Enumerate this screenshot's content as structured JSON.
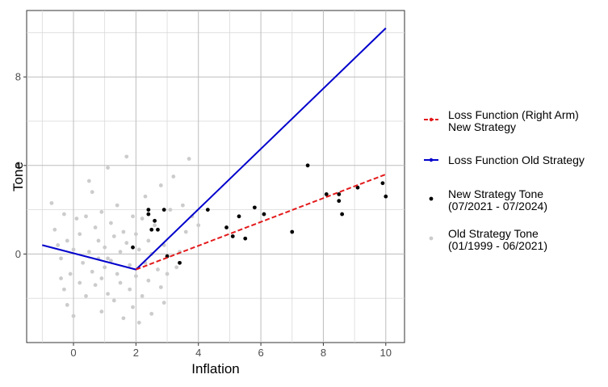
{
  "chart_data": {
    "type": "scatter",
    "xlabel": "Inflation",
    "ylabel": "Tone",
    "xlim": [
      -1.5,
      10.6
    ],
    "ylim": [
      -4,
      11
    ],
    "xticks": [
      0,
      2,
      4,
      6,
      8,
      10
    ],
    "yticks": [
      0,
      4,
      8
    ],
    "grid": true,
    "legend_position": "right",
    "series": [
      {
        "kind": "line-dashed",
        "color": "#e31a1c",
        "legend_lines": [
          "Loss Function (Right Arm)",
          "New Strategy"
        ],
        "points": [
          [
            2,
            -0.7
          ],
          [
            10,
            3.6
          ]
        ]
      },
      {
        "kind": "line",
        "color": "#0000cc",
        "legend_lines": [
          "Loss Function Old Strategy"
        ],
        "points": [
          [
            -1,
            0.4
          ],
          [
            2,
            -0.7
          ],
          [
            10,
            10.2
          ]
        ]
      },
      {
        "kind": "points",
        "color": "#000000",
        "legend_lines": [
          "New Strategy Tone",
          "(07/2021 - 07/2024)"
        ],
        "points": [
          [
            1.9,
            0.3
          ],
          [
            2.4,
            1.8
          ],
          [
            2.4,
            2.0
          ],
          [
            2.5,
            1.1
          ],
          [
            2.6,
            1.5
          ],
          [
            2.7,
            1.1
          ],
          [
            2.9,
            2.0
          ],
          [
            3.0,
            -0.1
          ],
          [
            3.4,
            -0.4
          ],
          [
            4.3,
            2.0
          ],
          [
            4.9,
            1.2
          ],
          [
            5.1,
            0.8
          ],
          [
            5.3,
            1.7
          ],
          [
            5.5,
            0.7
          ],
          [
            5.8,
            2.1
          ],
          [
            6.1,
            1.8
          ],
          [
            7.0,
            1.0
          ],
          [
            7.5,
            4.0
          ],
          [
            8.1,
            2.7
          ],
          [
            8.5,
            2.7
          ],
          [
            8.5,
            2.4
          ],
          [
            8.6,
            1.8
          ],
          [
            9.1,
            3.0
          ],
          [
            9.9,
            3.2
          ],
          [
            10.0,
            2.6
          ]
        ]
      },
      {
        "kind": "points",
        "color": "#cccccc",
        "legend_lines": [
          "Old Strategy Tone",
          "(01/1999 - 06/2021)"
        ],
        "points": [
          [
            -0.7,
            2.3
          ],
          [
            -0.6,
            1.1
          ],
          [
            -0.5,
            0.4
          ],
          [
            -0.4,
            -0.2
          ],
          [
            -0.4,
            -1.1
          ],
          [
            -0.3,
            -1.6
          ],
          [
            -0.3,
            1.8
          ],
          [
            -0.2,
            0.6
          ],
          [
            -0.2,
            -2.3
          ],
          [
            -0.1,
            -0.9
          ],
          [
            0.0,
            -2.8
          ],
          [
            0.0,
            0.2
          ],
          [
            0.1,
            1.6
          ],
          [
            0.2,
            -1.3
          ],
          [
            0.2,
            0.9
          ],
          [
            0.3,
            -0.4
          ],
          [
            0.4,
            1.7
          ],
          [
            0.4,
            -1.9
          ],
          [
            0.5,
            3.3
          ],
          [
            0.5,
            0.1
          ],
          [
            0.6,
            -0.8
          ],
          [
            0.6,
            2.8
          ],
          [
            0.7,
            1.2
          ],
          [
            0.7,
            -1.4
          ],
          [
            0.8,
            -0.2
          ],
          [
            0.8,
            0.6
          ],
          [
            0.9,
            -2.6
          ],
          [
            0.9,
            1.9
          ],
          [
            1.0,
            0.3
          ],
          [
            1.0,
            -0.6
          ],
          [
            1.1,
            3.9
          ],
          [
            1.1,
            -1.8
          ],
          [
            1.2,
            1.4
          ],
          [
            1.2,
            -0.3
          ],
          [
            1.3,
            0.8
          ],
          [
            1.3,
            -2.1
          ],
          [
            1.4,
            2.2
          ],
          [
            1.4,
            -0.9
          ],
          [
            1.5,
            0.1
          ],
          [
            1.5,
            -1.3
          ],
          [
            1.6,
            1.0
          ],
          [
            1.6,
            -2.9
          ],
          [
            1.7,
            4.4
          ],
          [
            1.7,
            0.5
          ],
          [
            1.8,
            -0.5
          ],
          [
            1.8,
            -1.6
          ],
          [
            1.9,
            1.7
          ],
          [
            1.9,
            -2.4
          ],
          [
            2.0,
            0.9
          ],
          [
            2.0,
            -1.0
          ],
          [
            2.1,
            -3.1
          ],
          [
            2.1,
            0.2
          ],
          [
            2.2,
            1.6
          ],
          [
            2.2,
            -1.9
          ],
          [
            2.3,
            2.6
          ],
          [
            2.3,
            -0.4
          ],
          [
            2.4,
            -1.2
          ],
          [
            2.4,
            0.6
          ],
          [
            2.5,
            -2.7
          ],
          [
            2.5,
            0.0
          ],
          [
            2.6,
            1.3
          ],
          [
            2.7,
            -0.7
          ],
          [
            2.8,
            3.1
          ],
          [
            2.8,
            -1.5
          ],
          [
            2.9,
            0.4
          ],
          [
            3.0,
            -0.9
          ],
          [
            3.1,
            2.0
          ],
          [
            3.2,
            3.5
          ],
          [
            3.3,
            -0.6
          ],
          [
            3.4,
            0.1
          ],
          [
            3.5,
            2.2
          ],
          [
            3.6,
            1.0
          ],
          [
            3.7,
            4.3
          ],
          [
            3.8,
            1.7
          ],
          [
            4.0,
            1.3
          ],
          [
            2.9,
            -2.2
          ],
          [
            1.1,
            -0.2
          ],
          [
            0.9,
            -1.1
          ]
        ]
      }
    ]
  }
}
